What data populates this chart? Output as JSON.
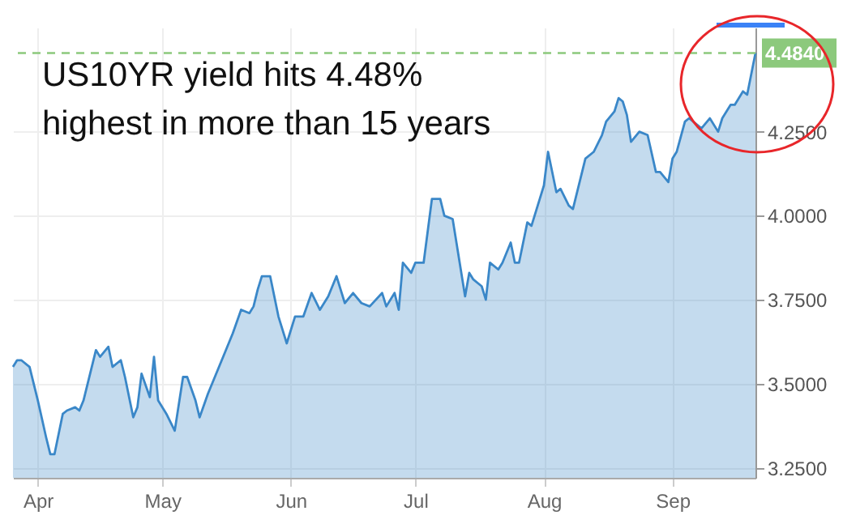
{
  "chart_data": {
    "type": "area",
    "title": "US10YR yield hits 4.48%\nhighest in more than 15 years",
    "x": [
      "--03-26",
      "--03-27",
      "--03-28",
      "--03-30",
      "--04-01",
      "--04-03",
      "--04-04",
      "--04-05",
      "--04-07",
      "--04-08",
      "--04-10",
      "--04-11",
      "--04-12",
      "--04-15",
      "--04-16",
      "--04-18",
      "--04-19",
      "--04-21",
      "--04-22",
      "--04-24",
      "--04-25",
      "--04-26",
      "--04-28",
      "--04-29",
      "--04-30",
      "--05-02",
      "--05-04",
      "--05-06",
      "--05-07",
      "--05-09",
      "--05-10",
      "--05-12",
      "--05-16",
      "--05-18",
      "--05-20",
      "--05-22",
      "--05-23",
      "--05-24",
      "--05-25",
      "--05-27",
      "--05-29",
      "--05-31",
      "--06-02",
      "--06-04",
      "--06-06",
      "--06-08",
      "--06-10",
      "--06-12",
      "--06-14",
      "--06-16",
      "--06-18",
      "--06-20",
      "--06-23",
      "--06-24",
      "--06-26",
      "--06-27",
      "--06-28",
      "--06-30",
      "--07-01",
      "--07-03",
      "--07-05",
      "--07-07",
      "--07-08",
      "--07-10",
      "--07-13",
      "--07-14",
      "--07-15",
      "--07-17",
      "--07-18",
      "--07-19",
      "--07-21",
      "--07-22",
      "--07-24",
      "--07-25",
      "--07-26",
      "--07-28",
      "--07-29",
      "--07-31",
      "--08-01",
      "--08-02",
      "--08-04",
      "--08-05",
      "--08-07",
      "--08-08",
      "--08-11",
      "--08-13",
      "--08-15",
      "--08-16",
      "--08-18",
      "--08-19",
      "--08-20",
      "--08-21",
      "--08-22",
      "--08-24",
      "--08-26",
      "--08-28",
      "--08-29",
      "--08-31",
      "--09-01",
      "--09-02",
      "--09-04",
      "--09-05",
      "--09-07",
      "--09-08",
      "--09-10",
      "--09-12",
      "--09-13",
      "--09-15",
      "--09-16",
      "--09-18",
      "--09-19",
      "--09-21"
    ],
    "series": [
      {
        "color": "#3a87c8",
        "values": [
          3.55,
          3.57,
          3.57,
          3.55,
          3.45,
          3.34,
          3.29,
          3.29,
          3.41,
          3.42,
          3.43,
          3.42,
          3.45,
          3.6,
          3.58,
          3.61,
          3.55,
          3.57,
          3.52,
          3.4,
          3.43,
          3.53,
          3.46,
          3.58,
          3.45,
          3.41,
          3.36,
          3.52,
          3.52,
          3.45,
          3.4,
          3.47,
          3.59,
          3.65,
          3.72,
          3.71,
          3.73,
          3.78,
          3.82,
          3.82,
          3.7,
          3.62,
          3.7,
          3.7,
          3.77,
          3.72,
          3.76,
          3.82,
          3.74,
          3.77,
          3.74,
          3.73,
          3.77,
          3.73,
          3.77,
          3.72,
          3.86,
          3.83,
          3.86,
          3.86,
          4.05,
          4.05,
          4.0,
          3.99,
          3.76,
          3.83,
          3.81,
          3.79,
          3.75,
          3.86,
          3.84,
          3.86,
          3.92,
          3.86,
          3.86,
          3.98,
          3.97,
          4.05,
          4.09,
          4.19,
          4.07,
          4.08,
          4.03,
          4.02,
          4.17,
          4.19,
          4.24,
          4.28,
          4.31,
          4.35,
          4.34,
          4.3,
          4.22,
          4.25,
          4.24,
          4.13,
          4.13,
          4.1,
          4.17,
          4.19,
          4.28,
          4.29,
          4.27,
          4.26,
          4.29,
          4.25,
          4.29,
          4.33,
          4.33,
          4.37,
          4.36,
          4.484
        ]
      }
    ],
    "xlim": [
      "--03-26",
      "--09-21"
    ],
    "xticks": [
      {
        "value": "--04-01",
        "label": "Apr"
      },
      {
        "value": "--05-01",
        "label": "May"
      },
      {
        "value": "--06-01",
        "label": "Jun"
      },
      {
        "value": "--07-01",
        "label": "Jul"
      },
      {
        "value": "--08-01",
        "label": "Aug"
      },
      {
        "value": "--09-01",
        "label": "Sep"
      }
    ],
    "ylim": [
      3.22,
      4.56
    ],
    "yticks": [
      {
        "value": 3.25,
        "label": "3.2500"
      },
      {
        "value": 3.5,
        "label": "3.5000"
      },
      {
        "value": 3.75,
        "label": "3.7500"
      },
      {
        "value": 4.0,
        "label": "4.0000"
      },
      {
        "value": 4.25,
        "label": "4.2500"
      }
    ],
    "ref_lines": [
      {
        "axis": "y",
        "value": 4.484,
        "label": "4.4840",
        "color": "#8cc97c",
        "line_style": "dashed"
      }
    ],
    "grid": true
  }
}
